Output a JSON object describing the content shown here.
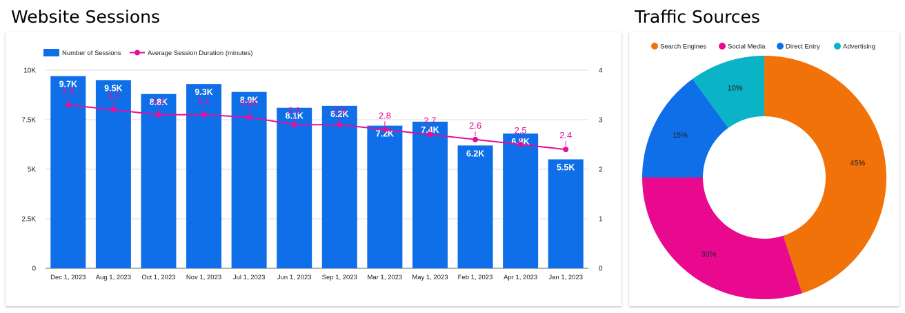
{
  "sessions_title": "Website Sessions",
  "traffic_title": "Traffic Sources",
  "colors": {
    "bar": "#0e6fe8",
    "line": "#e30f9a",
    "search_engines": "#f2720a",
    "social_media": "#e8098f",
    "direct_entry": "#0e6fe8",
    "advertising": "#0ab3c6",
    "grid": "#dadce0",
    "axis_text": "#202124"
  },
  "chart_data": [
    {
      "type": "bar",
      "title": "Website Sessions",
      "categories": [
        "Dec 1, 2023",
        "Aug 1, 2023",
        "Oct 1, 2023",
        "Nov 1, 2023",
        "Jul 1, 2023",
        "Jun 1, 2023",
        "Sep 1, 2023",
        "Mar 1, 2023",
        "May 1, 2023",
        "Feb 1, 2023",
        "Apr 1, 2023",
        "Jan 1, 2023"
      ],
      "series": [
        {
          "name": "Number of Sessions",
          "type": "bar",
          "axis": "left",
          "values": [
            9700,
            9500,
            8800,
            9300,
            8900,
            8100,
            8200,
            7200,
            7400,
            6200,
            6800,
            5500
          ],
          "labels": [
            "9.7K",
            "9.5K",
            "8.8K",
            "9.3K",
            "8.9K",
            "8.1K",
            "8.2K",
            "7.2K",
            "7.4K",
            "6.2K",
            "6.8K",
            "5.5K"
          ]
        },
        {
          "name": "Average Session Duration (minutes)",
          "type": "line",
          "axis": "right",
          "values": [
            3.3,
            3.2,
            3.1,
            3.1,
            3.05,
            2.9,
            2.9,
            2.8,
            2.7,
            2.6,
            2.5,
            2.4
          ],
          "labels": [
            "3.3",
            "3.2",
            "3.1",
            "3.1",
            "3.05",
            "2.9",
            "2.9",
            "2.8",
            "2.7",
            "2.6",
            "2.5",
            "2.4"
          ]
        }
      ],
      "y_left": {
        "ylim": [
          0,
          10000
        ],
        "ticks": [
          0,
          2500,
          5000,
          7500,
          10000
        ],
        "tick_labels": [
          "0",
          "2.5K",
          "5K",
          "7.5K",
          "10K"
        ]
      },
      "y_right": {
        "ylim": [
          0,
          4
        ],
        "ticks": [
          0,
          1,
          2,
          3,
          4
        ],
        "tick_labels": [
          "0",
          "1",
          "2",
          "3",
          "4"
        ]
      },
      "legend": [
        "Number of Sessions",
        "Average Session Duration (minutes)"
      ],
      "legend_position": "top-left",
      "grid": true
    },
    {
      "type": "pie",
      "title": "Traffic Sources",
      "donut": true,
      "categories": [
        "Search Engines",
        "Social Media",
        "Direct Entry",
        "Advertising"
      ],
      "values": [
        45,
        30,
        15,
        10
      ],
      "labels": [
        "45%",
        "30%",
        "15%",
        "10%"
      ],
      "legend_position": "top"
    }
  ]
}
